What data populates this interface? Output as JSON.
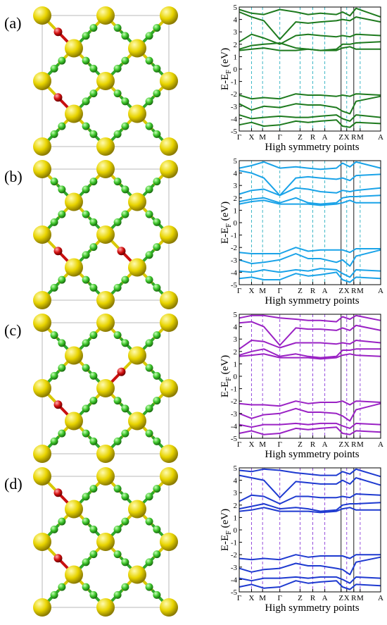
{
  "figure": {
    "panels": [
      {
        "label": "(a)",
        "color": "#1e7a1e",
        "dashed_color": "#2ab0c0",
        "oxygen_sites": [
          [
            3,
            0.5
          ],
          [
            1,
            1.5
          ],
          [
            0,
            2.5
          ],
          [
            0,
            0.5
          ]
        ]
      },
      {
        "label": "(b)",
        "color": "#1aa3e8",
        "dashed_color": "#2ab0c0",
        "oxygen_sites": [
          [
            3,
            0.5
          ],
          [
            0,
            2.5
          ],
          [
            1,
            2.5
          ],
          [
            2,
            2.5
          ]
        ]
      },
      {
        "label": "(c)",
        "color": "#9a22c4",
        "dashed_color": "#8a3ad8",
        "oxygen_sites": [
          [
            1,
            1.5
          ],
          [
            2,
            1.5
          ],
          [
            0,
            2.5
          ],
          [
            2,
            1.5
          ]
        ]
      },
      {
        "label": "(d)",
        "color": "#1e3ad0",
        "dashed_color": "#8a3ad8",
        "oxygen_sites": [
          [
            0,
            0.5
          ],
          [
            1,
            0.5
          ],
          [
            0,
            2.5
          ],
          [
            3,
            2.5
          ]
        ]
      }
    ],
    "axis_ylabel": "E-E",
    "axis_ylabel_sub": "F",
    "axis_ylabel_unit": " (eV)",
    "axis_xlabel": "High symmetry points",
    "ytick_labels": [
      "5",
      "4",
      "3",
      "2",
      "1",
      "0",
      "-1",
      "-2",
      "-3",
      "-4",
      "-5"
    ],
    "xtick_labels": [
      "Γ",
      "X",
      "M",
      "Γ",
      "Z",
      "R",
      "A",
      "Z",
      "X",
      "R",
      "M",
      "A"
    ],
    "colors": {
      "yellow_atom": "#e8d400",
      "green_atom": "#3cc42a",
      "red_atom": "#d41010",
      "frame": "#b8b8b8"
    }
  },
  "chart_data": [
    {
      "type": "line",
      "panel": "(a)",
      "xlabel": "High symmetry points",
      "ylabel": "E-E_F (eV)",
      "ylim": [
        -5,
        5
      ],
      "xticks": [
        "Γ",
        "X",
        "M",
        "Γ",
        "Z",
        "R",
        "A",
        "Z",
        "X",
        "R",
        "M",
        "A"
      ],
      "x": [
        0,
        1,
        2,
        3.3,
        4.6,
        5.6,
        6.6,
        7.9,
        8.4,
        9.0,
        9.5,
        11.5
      ],
      "series": [
        {
          "values": [
            4.8,
            4.5,
            4.4,
            4.8,
            4.6,
            4.4,
            4.5,
            4.4,
            4.6,
            4.3,
            4.9,
            4.2
          ]
        },
        {
          "values": [
            4.6,
            4.2,
            3.9,
            2.4,
            3.8,
            3.7,
            3.8,
            3.9,
            4.0,
            3.9,
            4.2,
            3.8
          ]
        },
        {
          "values": [
            2.2,
            2.8,
            2.5,
            2.0,
            2.7,
            2.8,
            2.7,
            2.6,
            2.7,
            2.6,
            2.8,
            2.7
          ]
        },
        {
          "values": [
            1.6,
            1.9,
            2.0,
            2.1,
            1.7,
            1.6,
            1.5,
            1.6,
            2.0,
            2.0,
            2.1,
            2.2
          ]
        },
        {
          "values": [
            1.5,
            1.6,
            1.7,
            1.5,
            1.5,
            1.6,
            1.5,
            1.5,
            1.7,
            1.8,
            1.6,
            1.6
          ]
        },
        {
          "values": [
            -2.1,
            -2.4,
            -2.3,
            -2.4,
            -2.0,
            -2.1,
            -2.1,
            -2.2,
            -2.1,
            -2.2,
            -2.0,
            -2.1
          ]
        },
        {
          "values": [
            -2.8,
            -3.3,
            -3.0,
            -3.1,
            -2.8,
            -2.9,
            -2.9,
            -3.1,
            -3.4,
            -3.6,
            -2.6,
            -2.2
          ]
        },
        {
          "values": [
            -3.7,
            -4.0,
            -3.9,
            -3.8,
            -3.9,
            -3.9,
            -3.8,
            -3.7,
            -4.0,
            -4.2,
            -3.7,
            -3.9
          ]
        },
        {
          "values": [
            -4.5,
            -4.3,
            -4.6,
            -4.5,
            -4.2,
            -4.3,
            -4.2,
            -4.1,
            -4.6,
            -4.7,
            -4.3,
            -4.4
          ]
        }
      ]
    },
    {
      "type": "line",
      "panel": "(b)",
      "xlabel": "High symmetry points",
      "ylabel": "E-E_F (eV)",
      "ylim": [
        -5,
        5
      ],
      "xticks": [
        "Γ",
        "X",
        "M",
        "Γ",
        "Z",
        "R",
        "A",
        "Z",
        "X",
        "R",
        "M",
        "A"
      ],
      "x": [
        0,
        1,
        2,
        3.3,
        4.6,
        5.6,
        6.6,
        7.9,
        8.4,
        9.0,
        9.5,
        11.5
      ],
      "series": [
        {
          "values": [
            4.4,
            4.6,
            4.9,
            4.4,
            4.5,
            4.4,
            4.3,
            4.4,
            4.8,
            4.5,
            4.9,
            4.4
          ]
        },
        {
          "values": [
            4.2,
            4.0,
            3.6,
            2.2,
            3.6,
            3.7,
            3.6,
            3.5,
            3.6,
            3.4,
            3.8,
            3.9
          ]
        },
        {
          "values": [
            2.3,
            2.6,
            2.7,
            2.2,
            2.8,
            2.7,
            2.5,
            2.4,
            2.6,
            2.5,
            2.6,
            2.8
          ]
        },
        {
          "values": [
            1.7,
            1.9,
            2.0,
            1.6,
            2.0,
            1.6,
            1.5,
            1.6,
            2.0,
            2.1,
            2.1,
            2.2
          ]
        },
        {
          "values": [
            1.5,
            1.7,
            1.8,
            1.5,
            1.5,
            1.5,
            1.4,
            1.5,
            1.6,
            1.8,
            1.6,
            1.6
          ]
        },
        {
          "values": [
            -2.4,
            -2.5,
            -2.5,
            -2.5,
            -2.0,
            -2.3,
            -2.2,
            -2.2,
            -2.2,
            -2.4,
            -2.1,
            -2.1
          ]
        },
        {
          "values": [
            -3.0,
            -3.3,
            -3.2,
            -3.0,
            -2.5,
            -2.9,
            -2.9,
            -3.2,
            -3.0,
            -3.5,
            -2.7,
            -2.2
          ]
        },
        {
          "values": [
            -3.9,
            -4.0,
            -3.8,
            -4.0,
            -3.8,
            -3.9,
            -3.7,
            -3.8,
            -4.1,
            -4.4,
            -3.8,
            -3.9
          ]
        },
        {
          "values": [
            -4.5,
            -4.4,
            -4.6,
            -4.6,
            -4.1,
            -4.3,
            -4.2,
            -4.0,
            -4.6,
            -4.8,
            -4.4,
            -4.5
          ]
        }
      ]
    },
    {
      "type": "line",
      "panel": "(c)",
      "xlabel": "High symmetry points",
      "ylabel": "E-E_F (eV)",
      "ylim": [
        -5,
        5
      ],
      "xticks": [
        "Γ",
        "X",
        "M",
        "Γ",
        "Z",
        "R",
        "A",
        "Z",
        "X",
        "R",
        "M",
        "A"
      ],
      "x": [
        0,
        1,
        2,
        3.3,
        4.6,
        5.6,
        6.6,
        7.9,
        8.4,
        9.0,
        9.5,
        11.5
      ],
      "series": [
        {
          "values": [
            4.7,
            4.9,
            4.9,
            4.7,
            4.6,
            4.5,
            4.5,
            4.4,
            4.8,
            4.6,
            4.9,
            4.5
          ]
        },
        {
          "values": [
            4.3,
            4.4,
            4.0,
            2.5,
            3.9,
            3.8,
            3.8,
            3.7,
            3.9,
            3.7,
            4.1,
            3.7
          ]
        },
        {
          "values": [
            2.2,
            2.9,
            2.8,
            2.3,
            2.7,
            2.7,
            2.7,
            2.6,
            2.7,
            2.6,
            2.9,
            2.7
          ]
        },
        {
          "values": [
            1.7,
            2.0,
            2.2,
            1.6,
            1.8,
            1.6,
            1.5,
            1.6,
            2.1,
            2.1,
            2.2,
            2.2
          ]
        },
        {
          "values": [
            1.6,
            1.7,
            1.8,
            1.5,
            1.5,
            1.5,
            1.4,
            1.5,
            1.7,
            1.8,
            1.7,
            1.6
          ]
        },
        {
          "values": [
            -2.2,
            -2.3,
            -2.3,
            -2.4,
            -2.0,
            -2.2,
            -2.1,
            -2.1,
            -2.0,
            -2.3,
            -2.0,
            -2.1
          ]
        },
        {
          "values": [
            -3.0,
            -3.4,
            -3.1,
            -3.0,
            -2.6,
            -2.9,
            -2.9,
            -3.0,
            -3.2,
            -3.6,
            -2.7,
            -2.2
          ]
        },
        {
          "values": [
            -3.9,
            -4.1,
            -3.9,
            -3.9,
            -3.8,
            -3.9,
            -3.8,
            -3.8,
            -4.0,
            -4.2,
            -3.8,
            -3.9
          ]
        },
        {
          "values": [
            -4.6,
            -4.4,
            -4.7,
            -4.6,
            -4.2,
            -4.3,
            -4.2,
            -4.1,
            -4.6,
            -4.7,
            -4.4,
            -4.5
          ]
        }
      ]
    },
    {
      "type": "line",
      "panel": "(d)",
      "xlabel": "High symmetry points",
      "ylabel": "E-E_F (eV)",
      "ylim": [
        -5,
        5
      ],
      "xticks": [
        "Γ",
        "X",
        "M",
        "Γ",
        "Z",
        "R",
        "A",
        "Z",
        "X",
        "R",
        "M",
        "A"
      ],
      "x": [
        0,
        1,
        2,
        3.3,
        4.6,
        5.6,
        6.6,
        7.9,
        8.4,
        9.0,
        9.5,
        11.5
      ],
      "series": [
        {
          "values": [
            4.8,
            4.7,
            4.9,
            4.8,
            4.6,
            4.5,
            4.4,
            4.4,
            4.7,
            4.5,
            4.9,
            4.3
          ]
        },
        {
          "values": [
            4.4,
            4.2,
            4.0,
            2.6,
            3.9,
            3.8,
            3.7,
            3.7,
            4.0,
            3.7,
            4.2,
            3.6
          ]
        },
        {
          "values": [
            2.3,
            2.8,
            2.7,
            2.1,
            2.7,
            2.7,
            2.6,
            2.6,
            2.7,
            2.6,
            2.9,
            2.8
          ]
        },
        {
          "values": [
            1.7,
            1.9,
            2.1,
            1.7,
            1.8,
            1.7,
            1.5,
            1.6,
            2.0,
            2.1,
            2.1,
            2.2
          ]
        },
        {
          "values": [
            1.5,
            1.6,
            1.8,
            1.5,
            1.5,
            1.5,
            1.4,
            1.5,
            1.7,
            1.8,
            1.6,
            1.6
          ]
        },
        {
          "values": [
            -2.3,
            -2.4,
            -2.3,
            -2.4,
            -2.0,
            -2.2,
            -2.1,
            -2.1,
            -2.1,
            -2.3,
            -2.0,
            -2.0
          ]
        },
        {
          "values": [
            -3.1,
            -3.4,
            -3.2,
            -3.1,
            -2.7,
            -2.9,
            -2.9,
            -3.1,
            -3.2,
            -3.6,
            -2.6,
            -2.2
          ]
        },
        {
          "values": [
            -3.9,
            -4.1,
            -3.9,
            -3.9,
            -3.8,
            -3.9,
            -3.8,
            -3.8,
            -4.0,
            -4.3,
            -3.8,
            -3.9
          ]
        },
        {
          "values": [
            -4.6,
            -4.4,
            -4.7,
            -4.6,
            -4.1,
            -4.3,
            -4.2,
            -4.1,
            -4.6,
            -4.8,
            -4.4,
            -4.5
          ]
        }
      ]
    }
  ]
}
